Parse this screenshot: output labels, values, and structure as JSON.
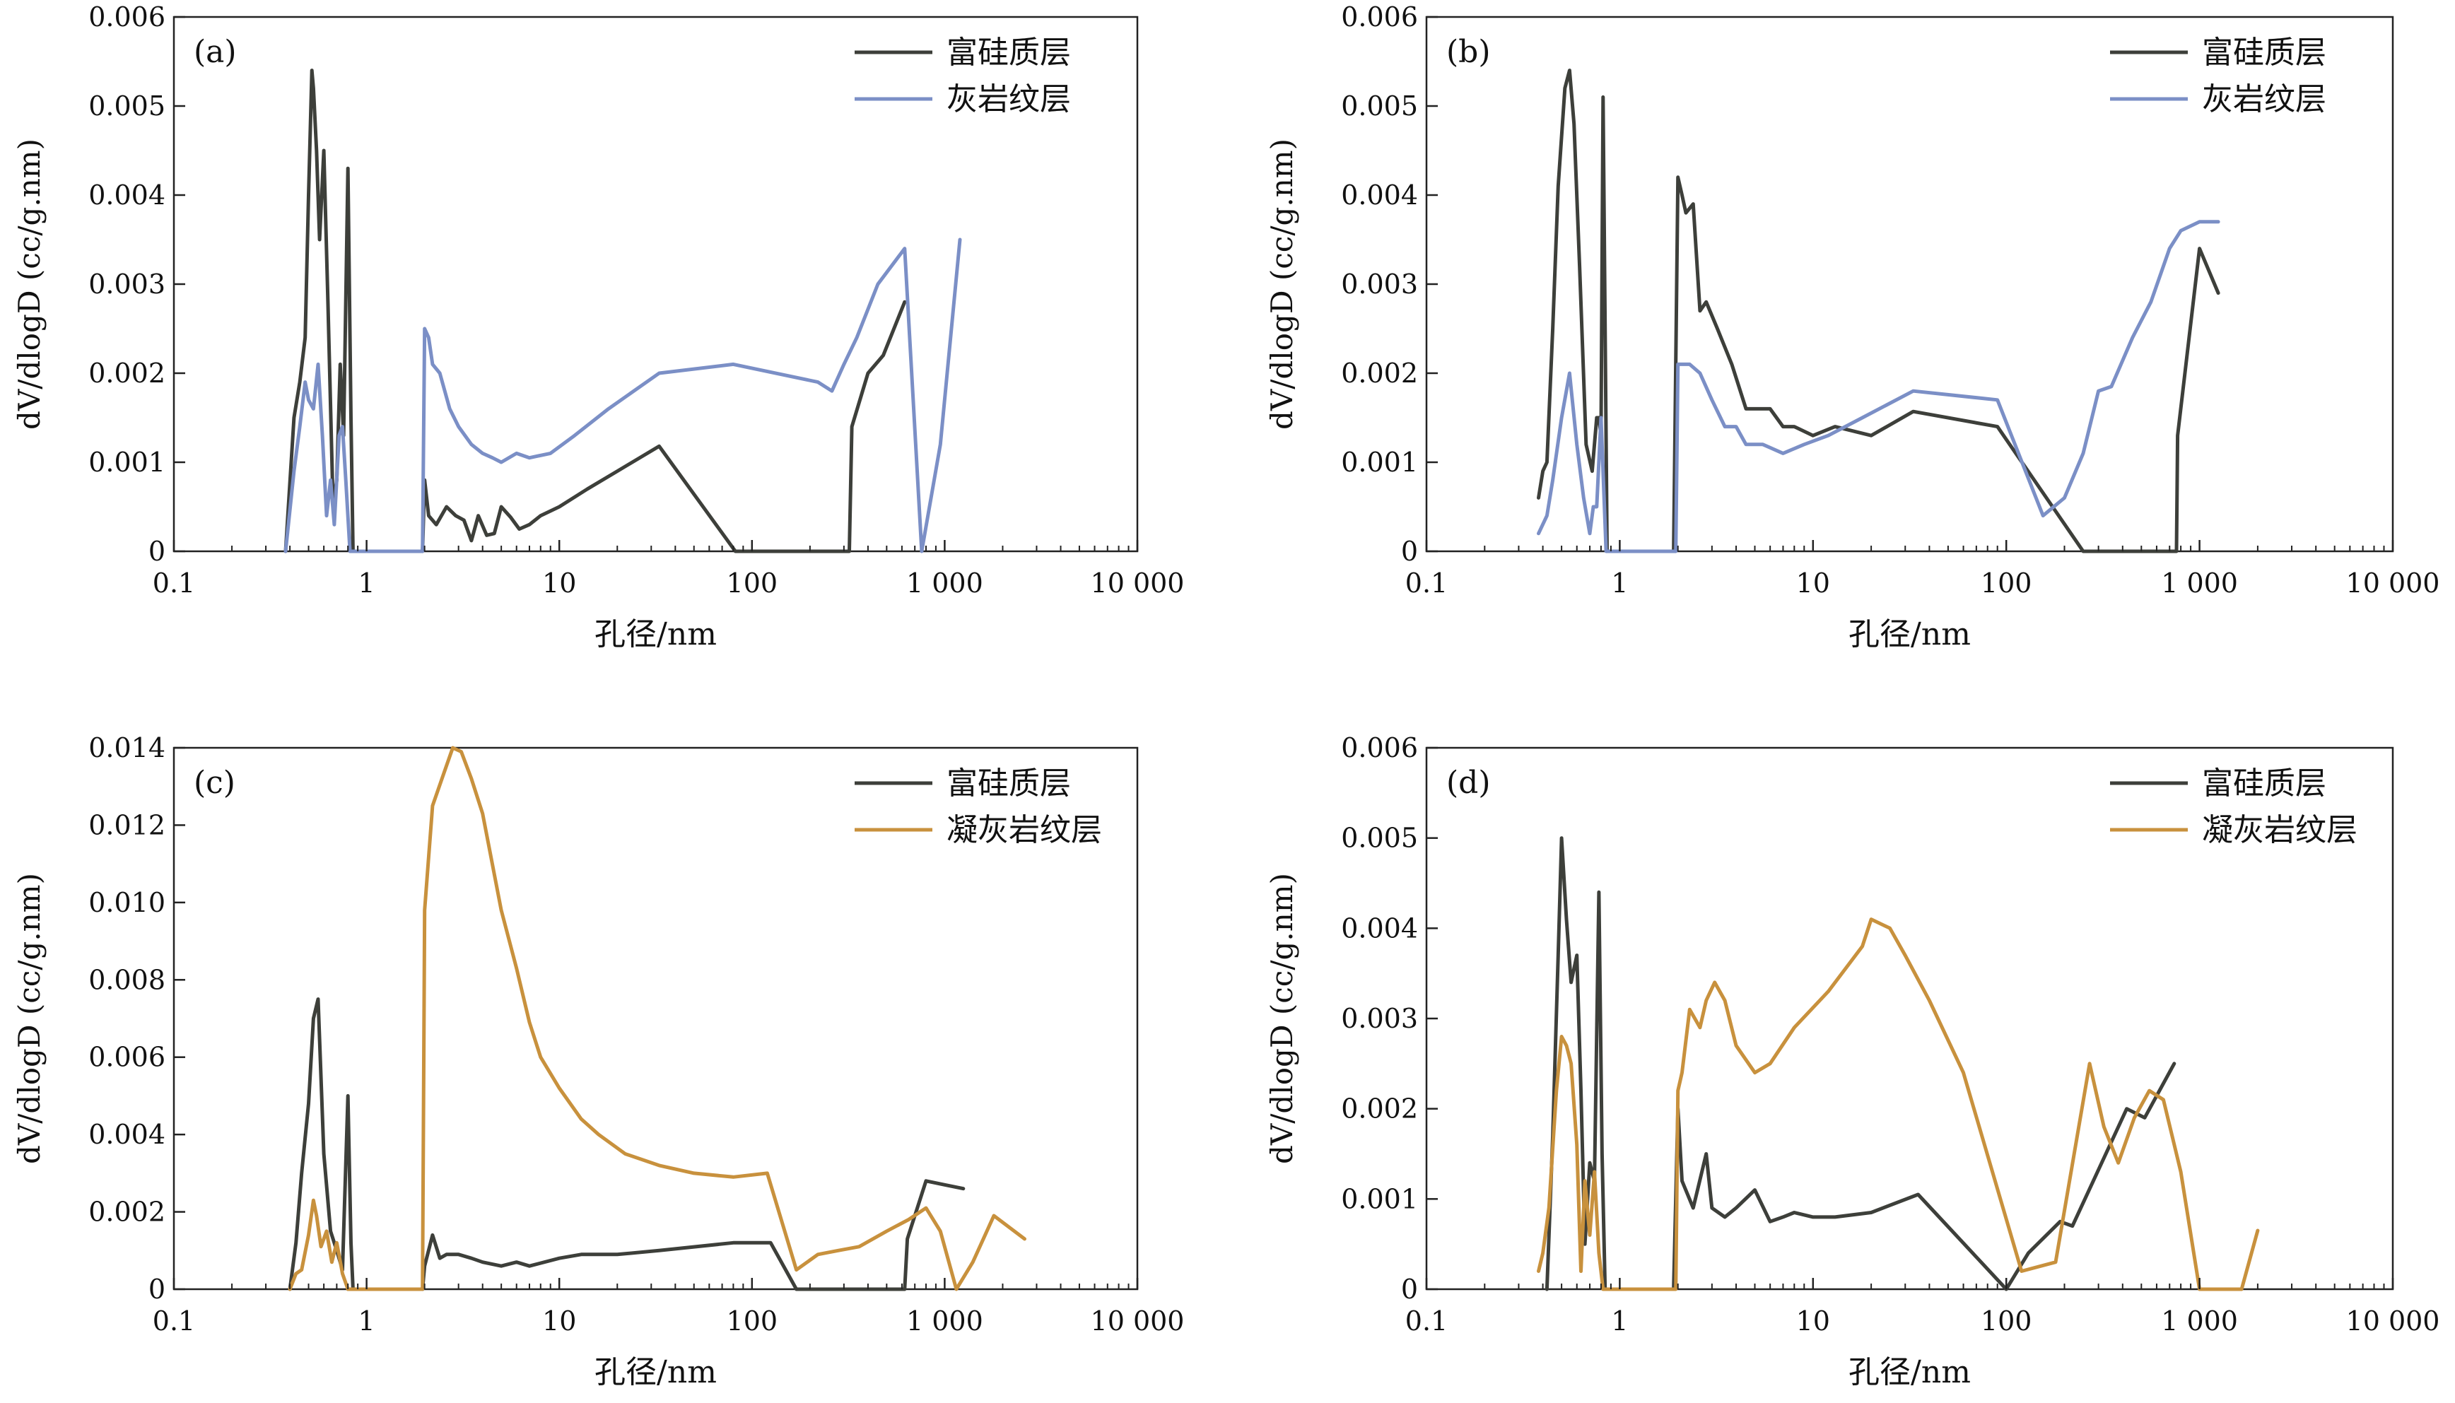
{
  "chart_data": [
    {
      "type": "line",
      "panel_label": "(a)",
      "xlabel": "孔径/nm",
      "ylabel": "dV/dlogD (cc/g.nm)",
      "xscale": "log",
      "xlim": [
        0.1,
        10000
      ],
      "ylim": [
        0,
        0.006
      ],
      "x_ticks": [
        0.1,
        1,
        10,
        100,
        1000,
        10000
      ],
      "x_tick_labels": [
        "0.1",
        "1",
        "10",
        "100",
        "1 000",
        "10 000"
      ],
      "y_ticks": [
        0,
        0.001,
        0.002,
        0.003,
        0.004,
        0.005,
        0.006
      ],
      "y_tick_labels": [
        "0",
        "0.001",
        "0.002",
        "0.003",
        "0.004",
        "0.005",
        "0.006"
      ],
      "legend_position": "top-right",
      "series": [
        {
          "name": "富硅质层",
          "color": "#3d3f3a",
          "x": [
            0.38,
            0.42,
            0.45,
            0.48,
            0.5,
            0.52,
            0.53,
            0.55,
            0.57,
            0.6,
            0.63,
            0.67,
            0.7,
            0.73,
            0.76,
            0.8,
            0.83,
            0.85,
            1.95,
            2.0,
            2.1,
            2.3,
            2.6,
            2.9,
            3.2,
            3.5,
            3.8,
            4.2,
            4.6,
            5.0,
            5.6,
            6.2,
            7.0,
            8.0,
            10.0,
            14.0,
            20.0,
            33.0,
            82.0,
            320.0,
            330.0,
            400.0,
            480.0,
            620.0
          ],
          "y": [
            0.0,
            0.0015,
            0.0019,
            0.0024,
            0.004,
            0.0054,
            0.0052,
            0.0045,
            0.0035,
            0.0045,
            0.0028,
            0.0005,
            0.0008,
            0.0021,
            0.0013,
            0.0043,
            0.0015,
            0.0,
            0.0,
            0.0008,
            0.0004,
            0.0003,
            0.0005,
            0.0004,
            0.00035,
            0.00012,
            0.0004,
            0.00018,
            0.0002,
            0.0005,
            0.00038,
            0.00025,
            0.0003,
            0.0004,
            0.0005,
            0.0007,
            0.0009,
            0.00118,
            0.0,
            0.0,
            0.0014,
            0.002,
            0.0022,
            0.0028
          ]
        },
        {
          "name": "灰岩纹层",
          "color": "#7b8fc6",
          "x": [
            0.38,
            0.42,
            0.45,
            0.48,
            0.5,
            0.53,
            0.56,
            0.59,
            0.62,
            0.65,
            0.68,
            0.72,
            0.75,
            0.78,
            0.82,
            1.95,
            2.0,
            2.1,
            2.2,
            2.4,
            2.7,
            3.0,
            3.5,
            4.0,
            4.5,
            5.0,
            6.0,
            7.0,
            9.0,
            12.0,
            18.0,
            33.0,
            80.0,
            220.0,
            260.0,
            300.0,
            350.0,
            450.0,
            620.0,
            760.0,
            950.0,
            1200.0
          ],
          "y": [
            0.0,
            0.0009,
            0.0014,
            0.0019,
            0.0017,
            0.0016,
            0.0021,
            0.0013,
            0.0004,
            0.0008,
            0.0003,
            0.0013,
            0.0014,
            0.0008,
            0.0,
            0.0,
            0.0025,
            0.0024,
            0.0021,
            0.002,
            0.0016,
            0.0014,
            0.0012,
            0.0011,
            0.00105,
            0.001,
            0.0011,
            0.00105,
            0.0011,
            0.0013,
            0.0016,
            0.002,
            0.0021,
            0.0019,
            0.0018,
            0.0021,
            0.0024,
            0.003,
            0.0034,
            0.0,
            0.0012,
            0.0035
          ]
        }
      ]
    },
    {
      "type": "line",
      "panel_label": "(b)",
      "xlabel": "孔径/nm",
      "ylabel": "dV/dlogD (cc/g.nm)",
      "xscale": "log",
      "xlim": [
        0.1,
        10000
      ],
      "ylim": [
        0,
        0.006
      ],
      "x_ticks": [
        0.1,
        1,
        10,
        100,
        1000,
        10000
      ],
      "x_tick_labels": [
        "0.1",
        "1",
        "10",
        "100",
        "1 000",
        "10 000"
      ],
      "y_ticks": [
        0,
        0.001,
        0.002,
        0.003,
        0.004,
        0.005,
        0.006
      ],
      "y_tick_labels": [
        "0",
        "0.001",
        "0.002",
        "0.003",
        "0.004",
        "0.005",
        "0.006"
      ],
      "legend_position": "top-right",
      "series": [
        {
          "name": "富硅质层",
          "color": "#3d3f3a",
          "x": [
            0.38,
            0.4,
            0.42,
            0.45,
            0.48,
            0.52,
            0.55,
            0.58,
            0.62,
            0.67,
            0.72,
            0.76,
            0.78,
            0.8,
            0.82,
            0.86,
            0.88,
            1.9,
            2.0,
            2.1,
            2.2,
            2.4,
            2.6,
            2.8,
            3.2,
            3.8,
            4.5,
            5.5,
            6.0,
            7.0,
            8.0,
            10.0,
            13.0,
            20.0,
            33.0,
            90.0,
            250.0,
            760.0,
            770.0,
            1000.0,
            1250.0
          ],
          "y": [
            0.0006,
            0.0009,
            0.001,
            0.0025,
            0.0041,
            0.0052,
            0.0054,
            0.0048,
            0.0032,
            0.0012,
            0.0009,
            0.0015,
            0.0015,
            0.0013,
            0.0051,
            0.0,
            0.0,
            0.0,
            0.0042,
            0.004,
            0.0038,
            0.0039,
            0.0027,
            0.0028,
            0.0025,
            0.0021,
            0.0016,
            0.0016,
            0.0016,
            0.0014,
            0.0014,
            0.0013,
            0.0014,
            0.0013,
            0.00157,
            0.0014,
            0.0,
            0.0,
            0.0013,
            0.0034,
            0.0029
          ]
        },
        {
          "name": "灰岩纹层",
          "color": "#7b8fc6",
          "x": [
            0.38,
            0.42,
            0.45,
            0.5,
            0.55,
            0.6,
            0.65,
            0.7,
            0.73,
            0.76,
            0.8,
            0.85,
            0.88,
            1.95,
            2.0,
            2.1,
            2.2,
            2.3,
            2.6,
            3.0,
            3.5,
            4.0,
            4.5,
            5.5,
            7.0,
            9.0,
            12.0,
            18.0,
            33.0,
            90.0,
            155.0,
            200.0,
            250.0,
            300.0,
            350.0,
            450.0,
            560.0,
            700.0,
            800.0,
            1000.0,
            1250.0
          ],
          "y": [
            0.0002,
            0.0004,
            0.0008,
            0.0015,
            0.002,
            0.0012,
            0.0006,
            0.0002,
            0.0005,
            0.0005,
            0.0015,
            0.0,
            0.0,
            0.0,
            0.0021,
            0.0021,
            0.0021,
            0.0021,
            0.002,
            0.0017,
            0.0014,
            0.0014,
            0.0012,
            0.0012,
            0.0011,
            0.0012,
            0.0013,
            0.0015,
            0.0018,
            0.0017,
            0.0004,
            0.0006,
            0.0011,
            0.0018,
            0.00185,
            0.0024,
            0.0028,
            0.0034,
            0.0036,
            0.0037,
            0.0037
          ]
        }
      ]
    },
    {
      "type": "line",
      "panel_label": "(c)",
      "xlabel": "孔径/nm",
      "ylabel": "dV/dlogD (cc/g.nm)",
      "xscale": "log",
      "xlim": [
        0.1,
        10000
      ],
      "ylim": [
        0,
        0.014
      ],
      "x_ticks": [
        0.1,
        1,
        10,
        100,
        1000,
        10000
      ],
      "x_tick_labels": [
        "0.1",
        "1",
        "10",
        "100",
        "1 000",
        "10 000"
      ],
      "y_ticks": [
        0,
        0.002,
        0.004,
        0.006,
        0.008,
        0.01,
        0.012,
        0.014
      ],
      "y_tick_labels": [
        "0",
        "0.002",
        "0.004",
        "0.006",
        "0.008",
        "0.010",
        "0.012",
        "0.014"
      ],
      "legend_position": "top-right",
      "series": [
        {
          "name": "富硅质层",
          "color": "#3d3f3a",
          "x": [
            0.4,
            0.43,
            0.46,
            0.5,
            0.53,
            0.56,
            0.6,
            0.65,
            0.7,
            0.75,
            0.8,
            0.83,
            0.85,
            1.95,
            2.0,
            2.2,
            2.4,
            2.6,
            3.0,
            3.5,
            4.0,
            5.0,
            6.0,
            7.0,
            10.0,
            13.0,
            20.0,
            33.0,
            80.0,
            125.0,
            170.0,
            620.0,
            640.0,
            800.0,
            1000.0,
            1250.0
          ],
          "y": [
            0.0,
            0.0012,
            0.003,
            0.0048,
            0.007,
            0.0075,
            0.0035,
            0.0015,
            0.001,
            0.0005,
            0.005,
            0.0012,
            0.0,
            0.0,
            0.0006,
            0.0014,
            0.0008,
            0.0009,
            0.0009,
            0.0008,
            0.0007,
            0.0006,
            0.0007,
            0.0006,
            0.0008,
            0.0009,
            0.0009,
            0.001,
            0.0012,
            0.0012,
            0.0,
            0.0,
            0.0013,
            0.0028,
            0.0027,
            0.0026
          ]
        },
        {
          "name": "凝灰岩纹层",
          "color": "#c8913d",
          "x": [
            0.4,
            0.43,
            0.46,
            0.5,
            0.53,
            0.55,
            0.58,
            0.62,
            0.66,
            0.7,
            0.75,
            0.8,
            1.95,
            2.0,
            2.2,
            2.5,
            2.8,
            3.1,
            3.5,
            4.0,
            5.0,
            6.0,
            7.0,
            8.0,
            10.0,
            13.0,
            16.0,
            22.0,
            33.0,
            50.0,
            80.0,
            120.0,
            170.0,
            220.0,
            280.0,
            360.0,
            500.0,
            650.0,
            800.0,
            950.0,
            1150.0,
            1400.0,
            1800.0,
            2600.0
          ],
          "y": [
            0.0,
            0.0004,
            0.0005,
            0.0014,
            0.0023,
            0.0019,
            0.0011,
            0.0015,
            0.0007,
            0.0012,
            0.0004,
            0.0,
            0.0,
            0.0098,
            0.0125,
            0.0133,
            0.014,
            0.0139,
            0.0132,
            0.0123,
            0.0098,
            0.0083,
            0.0069,
            0.006,
            0.0052,
            0.0044,
            0.004,
            0.0035,
            0.0032,
            0.003,
            0.0029,
            0.003,
            0.0005,
            0.0009,
            0.001,
            0.0011,
            0.0015,
            0.0018,
            0.0021,
            0.0015,
            0.0,
            0.0007,
            0.0019,
            0.0013
          ]
        }
      ]
    },
    {
      "type": "line",
      "panel_label": "(d)",
      "xlabel": "孔径/nm",
      "ylabel": "dV/dlogD (cc/g.nm)",
      "xscale": "log",
      "xlim": [
        0.1,
        10000
      ],
      "ylim": [
        0,
        0.006
      ],
      "x_ticks": [
        0.1,
        1,
        10,
        100,
        1000,
        10000
      ],
      "x_tick_labels": [
        "0.1",
        "1",
        "10",
        "100",
        "1 000",
        "10 000"
      ],
      "y_ticks": [
        0,
        0.001,
        0.002,
        0.003,
        0.004,
        0.005,
        0.006
      ],
      "y_tick_labels": [
        "0",
        "0.001",
        "0.002",
        "0.003",
        "0.004",
        "0.005",
        "0.006"
      ],
      "legend_position": "top-right",
      "series": [
        {
          "name": "富硅质层",
          "color": "#3d3f3a",
          "x": [
            0.42,
            0.45,
            0.48,
            0.5,
            0.53,
            0.56,
            0.6,
            0.63,
            0.66,
            0.7,
            0.74,
            0.78,
            0.81,
            0.84,
            0.86,
            1.9,
            2.0,
            2.1,
            2.4,
            2.8,
            3.0,
            3.5,
            4.0,
            5.0,
            6.0,
            7.0,
            8.0,
            10.0,
            13.0,
            20.0,
            35.0,
            100.0,
            130.0,
            190.0,
            220.0,
            420.0,
            520.0,
            740.0
          ],
          "y": [
            0.0,
            0.0017,
            0.0037,
            0.005,
            0.0041,
            0.0034,
            0.0037,
            0.0022,
            0.0005,
            0.0014,
            0.0012,
            0.0044,
            0.0015,
            0.0,
            0.0,
            0.0,
            0.002,
            0.0012,
            0.0009,
            0.0015,
            0.0009,
            0.0008,
            0.0009,
            0.0011,
            0.00075,
            0.0008,
            0.00085,
            0.0008,
            0.0008,
            0.00085,
            0.00105,
            0.0,
            0.0004,
            0.00075,
            0.0007,
            0.002,
            0.0019,
            0.0025
          ]
        },
        {
          "name": "凝灰岩纹层",
          "color": "#c8913d",
          "x": [
            0.38,
            0.4,
            0.43,
            0.47,
            0.5,
            0.53,
            0.56,
            0.6,
            0.63,
            0.66,
            0.7,
            0.74,
            0.78,
            0.82,
            1.95,
            2.0,
            2.1,
            2.3,
            2.6,
            2.8,
            3.1,
            3.5,
            4.0,
            5.0,
            6.0,
            8.0,
            12.0,
            18.0,
            20.0,
            25.0,
            30.0,
            40.0,
            60.0,
            120.0,
            180.0,
            270.0,
            320.0,
            380.0,
            460.0,
            550.0,
            650.0,
            800.0,
            1000.0,
            1650.0,
            2000.0
          ],
          "y": [
            0.0002,
            0.0004,
            0.0009,
            0.0022,
            0.0028,
            0.0027,
            0.0025,
            0.0016,
            0.0002,
            0.0012,
            0.0006,
            0.0013,
            0.0004,
            0.0,
            0.0,
            0.0022,
            0.0024,
            0.0031,
            0.0029,
            0.0032,
            0.0034,
            0.0032,
            0.0027,
            0.0024,
            0.0025,
            0.0029,
            0.0033,
            0.0038,
            0.0041,
            0.004,
            0.0037,
            0.0032,
            0.0024,
            0.0002,
            0.0003,
            0.0025,
            0.0018,
            0.0014,
            0.0019,
            0.0022,
            0.0021,
            0.0013,
            0.0,
            0.0,
            0.00065
          ]
        }
      ]
    }
  ]
}
